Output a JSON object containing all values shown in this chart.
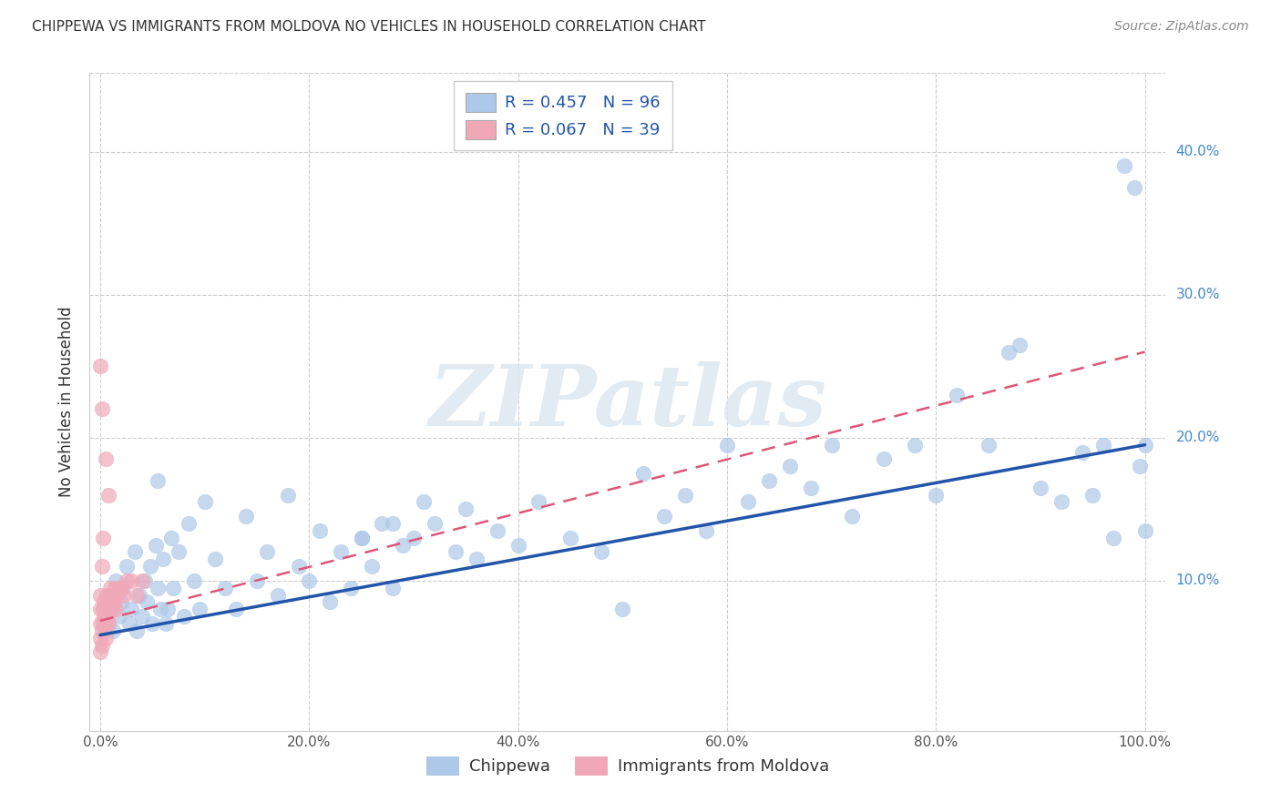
{
  "title": "CHIPPEWA VS IMMIGRANTS FROM MOLDOVA NO VEHICLES IN HOUSEHOLD CORRELATION CHART",
  "source": "Source: ZipAtlas.com",
  "ylabel": "No Vehicles in Household",
  "watermark": "ZIPatlas",
  "legend_blue_label": "R = 0.457   N = 96",
  "legend_pink_label": "R = 0.067   N = 39",
  "legend_label_blue": "Chippewa",
  "legend_label_pink": "Immigrants from Moldova",
  "blue_color": "#adc8e8",
  "blue_line_color": "#2255aa",
  "pink_color": "#f0a8b8",
  "pink_line_color": "#dd5577",
  "background_color": "#ffffff",
  "grid_color": "#cccccc",
  "xlim": [
    -0.01,
    1.02
  ],
  "ylim": [
    -0.005,
    0.455
  ],
  "ytick_labels": [
    "10.0%",
    "20.0%",
    "30.0%",
    "40.0%"
  ],
  "ytick_vals": [
    0.1,
    0.2,
    0.3,
    0.4
  ],
  "xtick_labels": [
    "0.0%",
    "20.0%",
    "40.0%",
    "60.0%",
    "80.0%",
    "100.0%"
  ],
  "xtick_vals": [
    0.0,
    0.2,
    0.4,
    0.6,
    0.8,
    1.0
  ],
  "blue_x": [
    0.005,
    0.008,
    0.01,
    0.012,
    0.015,
    0.018,
    0.02,
    0.022,
    0.025,
    0.028,
    0.03,
    0.033,
    0.035,
    0.038,
    0.04,
    0.043,
    0.045,
    0.048,
    0.05,
    0.053,
    0.055,
    0.058,
    0.06,
    0.063,
    0.065,
    0.068,
    0.07,
    0.075,
    0.08,
    0.085,
    0.09,
    0.095,
    0.1,
    0.11,
    0.12,
    0.13,
    0.14,
    0.15,
    0.16,
    0.17,
    0.18,
    0.19,
    0.2,
    0.21,
    0.22,
    0.23,
    0.24,
    0.25,
    0.26,
    0.27,
    0.28,
    0.29,
    0.3,
    0.32,
    0.34,
    0.35,
    0.36,
    0.38,
    0.4,
    0.42,
    0.45,
    0.48,
    0.5,
    0.52,
    0.54,
    0.56,
    0.58,
    0.6,
    0.62,
    0.64,
    0.66,
    0.68,
    0.7,
    0.72,
    0.75,
    0.78,
    0.8,
    0.82,
    0.85,
    0.87,
    0.88,
    0.9,
    0.92,
    0.94,
    0.95,
    0.96,
    0.97,
    0.98,
    0.99,
    0.995,
    1.0,
    1.0,
    0.055,
    0.25,
    0.28,
    0.31
  ],
  "blue_y": [
    0.08,
    0.07,
    0.09,
    0.065,
    0.1,
    0.075,
    0.085,
    0.095,
    0.11,
    0.07,
    0.08,
    0.12,
    0.065,
    0.09,
    0.075,
    0.1,
    0.085,
    0.11,
    0.07,
    0.125,
    0.095,
    0.08,
    0.115,
    0.07,
    0.08,
    0.13,
    0.095,
    0.12,
    0.075,
    0.14,
    0.1,
    0.08,
    0.155,
    0.115,
    0.095,
    0.08,
    0.145,
    0.1,
    0.12,
    0.09,
    0.16,
    0.11,
    0.1,
    0.135,
    0.085,
    0.12,
    0.095,
    0.13,
    0.11,
    0.14,
    0.095,
    0.125,
    0.13,
    0.14,
    0.12,
    0.15,
    0.115,
    0.135,
    0.125,
    0.155,
    0.13,
    0.12,
    0.08,
    0.175,
    0.145,
    0.16,
    0.135,
    0.195,
    0.155,
    0.17,
    0.18,
    0.165,
    0.195,
    0.145,
    0.185,
    0.195,
    0.16,
    0.23,
    0.195,
    0.26,
    0.265,
    0.165,
    0.155,
    0.19,
    0.16,
    0.195,
    0.13,
    0.39,
    0.375,
    0.18,
    0.135,
    0.195,
    0.17,
    0.13,
    0.14,
    0.155
  ],
  "pink_x": [
    0.0,
    0.0,
    0.0,
    0.0,
    0.0,
    0.002,
    0.002,
    0.003,
    0.003,
    0.004,
    0.004,
    0.005,
    0.005,
    0.006,
    0.006,
    0.007,
    0.008,
    0.008,
    0.009,
    0.01,
    0.011,
    0.012,
    0.013,
    0.014,
    0.015,
    0.016,
    0.018,
    0.02,
    0.022,
    0.025,
    0.03,
    0.035,
    0.04,
    0.002,
    0.005,
    0.008,
    0.0,
    0.002,
    0.003
  ],
  "pink_y": [
    0.05,
    0.06,
    0.07,
    0.08,
    0.09,
    0.055,
    0.065,
    0.07,
    0.08,
    0.075,
    0.085,
    0.06,
    0.07,
    0.08,
    0.09,
    0.075,
    0.07,
    0.085,
    0.08,
    0.095,
    0.08,
    0.09,
    0.085,
    0.095,
    0.08,
    0.09,
    0.095,
    0.095,
    0.09,
    0.1,
    0.1,
    0.09,
    0.1,
    0.22,
    0.185,
    0.16,
    0.25,
    0.11,
    0.13
  ],
  "blue_trendline_x": [
    0.0,
    1.0
  ],
  "blue_trendline_y": [
    0.062,
    0.195
  ],
  "pink_trendline_x": [
    0.0,
    1.0
  ],
  "pink_trendline_y": [
    0.072,
    0.26
  ],
  "title_fontsize": 11,
  "source_fontsize": 10,
  "ylabel_fontsize": 12,
  "tick_fontsize": 11,
  "legend_fontsize": 13,
  "marker_size": 140
}
